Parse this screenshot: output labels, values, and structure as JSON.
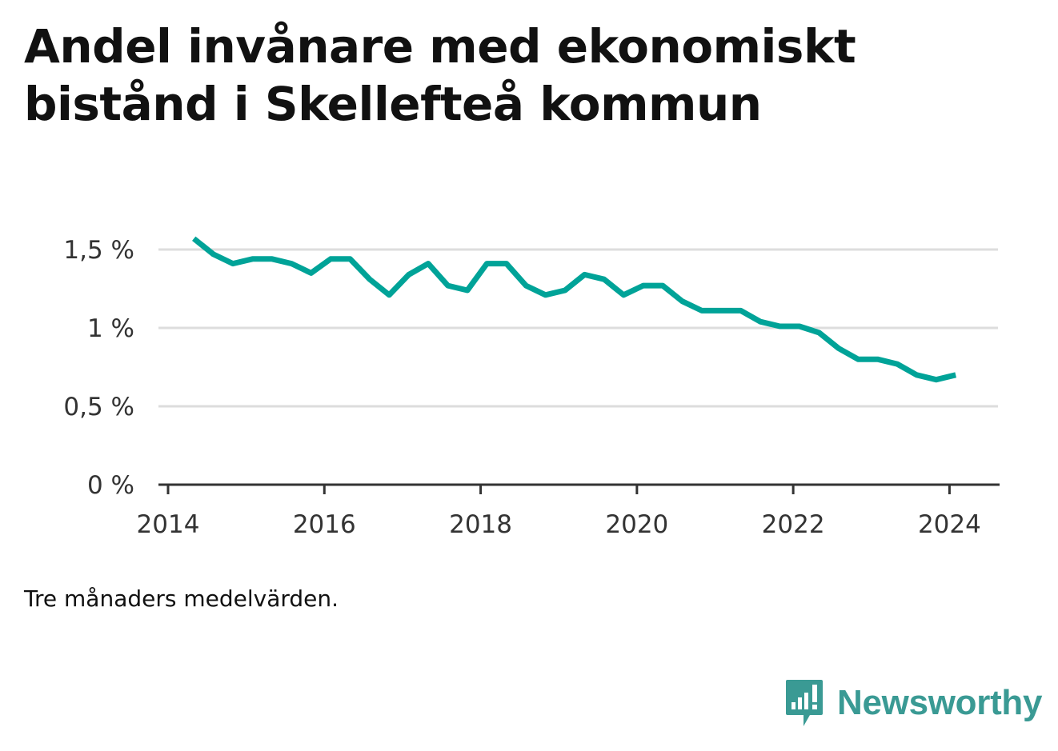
{
  "title": "Andel invånare med ekonomiskt bistånd i Skellefteå kommun",
  "note": "Tre månaders medelvärden.",
  "brand": {
    "name": "Newsworthy",
    "icon": "newsworthy-logo-icon",
    "color": "#3a9a94"
  },
  "chart_data": {
    "type": "line",
    "title": "Andel invånare med ekonomiskt bistånd i Skellefteå kommun",
    "xlabel": "",
    "ylabel": "",
    "xlim": [
      2014,
      2024.6
    ],
    "ylim": [
      0,
      1.5
    ],
    "x_ticks": [
      {
        "value": 2014,
        "label": "2014"
      },
      {
        "value": 2016,
        "label": "2016"
      },
      {
        "value": 2018,
        "label": "2018"
      },
      {
        "value": 2020,
        "label": "2020"
      },
      {
        "value": 2022,
        "label": "2022"
      },
      {
        "value": 2024,
        "label": "2024"
      }
    ],
    "y_ticks": [
      {
        "value": 0,
        "label": "0 %"
      },
      {
        "value": 0.5,
        "label": "0,5 %"
      },
      {
        "value": 1,
        "label": "1 %"
      },
      {
        "value": 1.5,
        "label": "1,5 %"
      }
    ],
    "grid": true,
    "legend": "none",
    "line_color": "#00a398",
    "series": [
      {
        "x": [
          2014.33,
          2014.58,
          2014.83,
          2015.08,
          2015.33,
          2015.58,
          2015.83,
          2016.08,
          2016.33,
          2016.58,
          2016.83,
          2017.08,
          2017.33,
          2017.58,
          2017.83,
          2018.08,
          2018.33,
          2018.58,
          2018.83,
          2019.08,
          2019.33,
          2019.58,
          2019.83,
          2020.08,
          2020.33,
          2020.58,
          2020.83,
          2021.08,
          2021.33,
          2021.58,
          2021.83,
          2022.08,
          2022.33,
          2022.58,
          2022.83,
          2023.08,
          2023.33,
          2023.58,
          2023.83,
          2024.08
        ],
        "y": [
          1.57,
          1.47,
          1.41,
          1.44,
          1.44,
          1.41,
          1.35,
          1.44,
          1.44,
          1.31,
          1.21,
          1.34,
          1.41,
          1.27,
          1.24,
          1.41,
          1.41,
          1.27,
          1.21,
          1.24,
          1.34,
          1.31,
          1.21,
          1.27,
          1.27,
          1.17,
          1.11,
          1.11,
          1.11,
          1.04,
          1.01,
          1.01,
          0.97,
          0.87,
          0.8,
          0.8,
          0.77,
          0.7,
          0.67,
          0.7
        ]
      }
    ]
  }
}
